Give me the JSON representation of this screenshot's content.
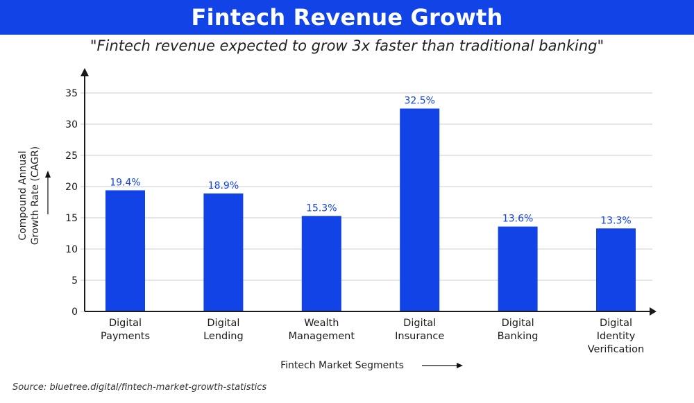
{
  "header": {
    "title": "Fintech Revenue Growth",
    "subtitle": "\"Fintech revenue expected to grow 3x faster than traditional banking\""
  },
  "source": "Source: bluetree.digital/fintech-market-growth-statistics",
  "colors": {
    "title_bar": "#1243e6",
    "bar": "#1243e6",
    "bar_label": "#1243e6",
    "axis": "#1a1a1a",
    "grid": "#e6e6e6"
  },
  "chart_data": {
    "type": "bar",
    "title": "Fintech Revenue Growth",
    "subtitle": "\"Fintech revenue expected to grow 3x faster than traditional banking\"",
    "xlabel": "Fintech Market Segments",
    "ylabel": "Compound Annual Growth Rate (CAGR)",
    "ylabel_lines": [
      "Compound Annual",
      "Growth Rate (CAGR)"
    ],
    "categories": [
      [
        "Digital",
        "Payments"
      ],
      [
        "Digital",
        "Lending"
      ],
      [
        "Wealth",
        "Management"
      ],
      [
        "Digital",
        "Insurance"
      ],
      [
        "Digital",
        "Banking"
      ],
      [
        "Digital",
        "Identity",
        "Verification"
      ]
    ],
    "values": [
      19.4,
      18.9,
      15.3,
      32.5,
      13.6,
      13.3
    ],
    "data_labels": [
      "19.4%",
      "18.9%",
      "15.3%",
      "32.5%",
      "13.6%",
      "13.3%"
    ],
    "ylim": [
      0,
      35
    ],
    "yticks": [
      0,
      5,
      10,
      15,
      20,
      25,
      30,
      35
    ],
    "grid": true,
    "legend": "none"
  }
}
